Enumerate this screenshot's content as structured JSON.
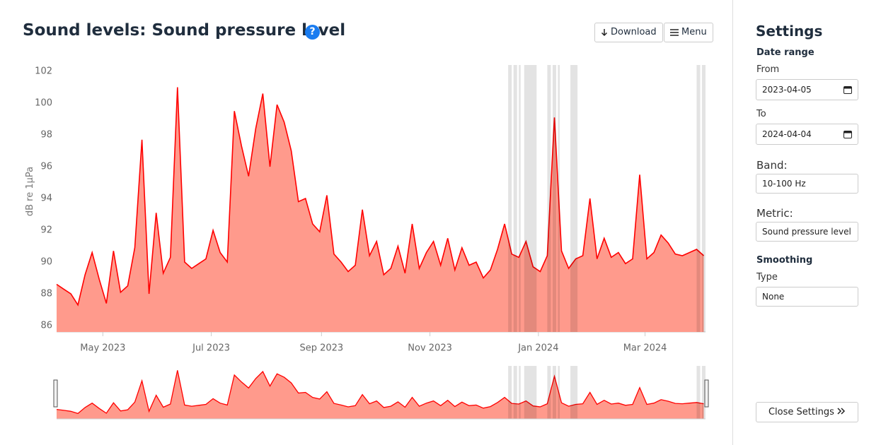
{
  "header": {
    "title": "Sound levels: Sound pressure level",
    "help": "?",
    "download": "Download",
    "menu": "Menu"
  },
  "settings": {
    "title": "Settings",
    "date_range": "Date range",
    "from_label": "From",
    "from_value": "2023-04-05",
    "to_label": "To",
    "to_value": "2024-04-04",
    "band_label": "Band:",
    "band_value": "10-100 Hz",
    "metric_label": "Metric:",
    "metric_value": "Sound pressure level",
    "smoothing": "Smoothing",
    "type_label": "Type",
    "type_value": "None",
    "close": "Close Settings"
  },
  "chart_data": {
    "type": "area",
    "y_label": "dB re 1µPa",
    "xlim": [
      "2023-04-05",
      "2024-04-04"
    ],
    "xticks": [
      {
        "value": "2023-05-01",
        "label": "May 2023"
      },
      {
        "value": "2023-07-01",
        "label": "Jul 2023"
      },
      {
        "value": "2023-09-01",
        "label": "Sep 2023"
      },
      {
        "value": "2023-11-01",
        "label": "Nov 2023"
      },
      {
        "value": "2024-01-01",
        "label": "Jan 2024"
      },
      {
        "value": "2024-03-01",
        "label": "Mar 2024"
      }
    ],
    "ylim": [
      85.6,
      102.4
    ],
    "yticks": [
      86,
      88,
      90,
      92,
      94,
      96,
      98,
      100,
      102
    ],
    "grid": false,
    "shaded_ranges": [
      [
        "2023-12-15",
        "2023-12-17"
      ],
      [
        "2023-12-18",
        "2023-12-20"
      ],
      [
        "2023-12-21",
        "2023-12-22"
      ],
      [
        "2023-12-24",
        "2023-12-31"
      ],
      [
        "2024-01-06",
        "2024-01-08"
      ],
      [
        "2024-01-09",
        "2024-01-11"
      ],
      [
        "2024-01-12",
        "2024-01-13"
      ],
      [
        "2024-01-19",
        "2024-01-23"
      ],
      [
        "2024-03-30",
        "2024-04-01"
      ],
      [
        "2024-04-02",
        "2024-04-04"
      ]
    ],
    "x": [
      "2023-04-05",
      "2023-04-09",
      "2023-04-13",
      "2023-04-17",
      "2023-04-21",
      "2023-04-25",
      "2023-04-29",
      "2023-05-03",
      "2023-05-07",
      "2023-05-11",
      "2023-05-15",
      "2023-05-19",
      "2023-05-23",
      "2023-05-27",
      "2023-05-31",
      "2023-06-04",
      "2023-06-08",
      "2023-06-12",
      "2023-06-16",
      "2023-06-20",
      "2023-06-24",
      "2023-06-28",
      "2023-07-02",
      "2023-07-06",
      "2023-07-10",
      "2023-07-14",
      "2023-07-18",
      "2023-07-22",
      "2023-07-26",
      "2023-07-30",
      "2023-08-03",
      "2023-08-07",
      "2023-08-11",
      "2023-08-15",
      "2023-08-19",
      "2023-08-23",
      "2023-08-27",
      "2023-08-31",
      "2023-09-04",
      "2023-09-08",
      "2023-09-12",
      "2023-09-16",
      "2023-09-20",
      "2023-09-24",
      "2023-09-28",
      "2023-10-02",
      "2023-10-06",
      "2023-10-10",
      "2023-10-14",
      "2023-10-18",
      "2023-10-22",
      "2023-10-26",
      "2023-10-30",
      "2023-11-03",
      "2023-11-07",
      "2023-11-11",
      "2023-11-15",
      "2023-11-19",
      "2023-11-23",
      "2023-11-27",
      "2023-12-01",
      "2023-12-05",
      "2023-12-09",
      "2023-12-13",
      "2023-12-17",
      "2023-12-21",
      "2023-12-25",
      "2023-12-29",
      "2024-01-02",
      "2024-01-06",
      "2024-01-10",
      "2024-01-14",
      "2024-01-18",
      "2024-01-22",
      "2024-01-26",
      "2024-01-30",
      "2024-02-03",
      "2024-02-07",
      "2024-02-11",
      "2024-02-15",
      "2024-02-19",
      "2024-02-23",
      "2024-02-27",
      "2024-03-02",
      "2024-03-06",
      "2024-03-10",
      "2024-03-14",
      "2024-03-18",
      "2024-03-22",
      "2024-03-26",
      "2024-03-30",
      "2024-04-03"
    ],
    "series": [
      {
        "name": "Sound pressure level",
        "color": "#ff0000",
        "fill": "#ff9a8c",
        "values": [
          88.6,
          88.3,
          88.0,
          87.3,
          89.2,
          90.6,
          88.9,
          87.4,
          90.7,
          88.1,
          88.5,
          90.9,
          97.7,
          88.0,
          93.1,
          89.3,
          90.3,
          101.0,
          90.0,
          89.6,
          89.9,
          90.2,
          92.0,
          90.6,
          90.0,
          99.5,
          97.3,
          95.4,
          98.4,
          100.6,
          96.0,
          99.9,
          98.8,
          97.0,
          93.8,
          94.0,
          92.4,
          91.9,
          94.2,
          90.5,
          90.0,
          89.4,
          89.8,
          93.3,
          90.4,
          91.3,
          89.2,
          89.6,
          91.0,
          89.3,
          92.4,
          89.6,
          90.6,
          91.3,
          89.8,
          91.5,
          89.5,
          90.9,
          89.8,
          90.0,
          89.0,
          89.5,
          90.8,
          92.4,
          90.5,
          90.3,
          91.3,
          89.7,
          89.4,
          90.4,
          99.1,
          90.7,
          89.6,
          90.2,
          90.4,
          94.0,
          90.2,
          91.5,
          90.3,
          90.6,
          89.9,
          90.2,
          95.5,
          90.2,
          90.6,
          91.7,
          91.2,
          90.5,
          90.4,
          90.6,
          90.8,
          90.4
        ]
      }
    ]
  }
}
